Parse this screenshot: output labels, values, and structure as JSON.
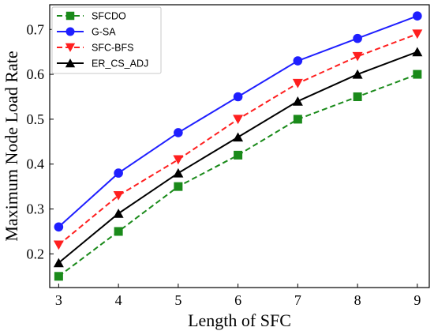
{
  "chart_data": {
    "type": "line",
    "title": "",
    "xlabel": "Length of SFC",
    "ylabel": "Maximum Node Load Rate",
    "x": [
      3,
      4,
      5,
      6,
      7,
      8,
      9
    ],
    "xlim": [
      2.85,
      9.2
    ],
    "ylim": [
      0.125,
      0.755
    ],
    "xticks": [
      3,
      4,
      5,
      6,
      7,
      8,
      9
    ],
    "yticks": [
      0.2,
      0.3,
      0.4,
      0.5,
      0.6,
      0.7
    ],
    "ytick_labels": [
      "0.2",
      "0.3",
      "0.4",
      "0.5",
      "0.6",
      "0.7"
    ],
    "legend_position": "top-left",
    "grid": false,
    "series": [
      {
        "name": "SFCDO",
        "color": "#1a8a1a",
        "marker": "square",
        "dash": true,
        "values": [
          0.15,
          0.25,
          0.35,
          0.42,
          0.5,
          0.55,
          0.6
        ]
      },
      {
        "name": "G-SA",
        "color": "#1f1fff",
        "marker": "circle",
        "dash": false,
        "values": [
          0.26,
          0.38,
          0.47,
          0.55,
          0.63,
          0.68,
          0.73
        ]
      },
      {
        "name": "SFC-BFS",
        "color": "#ff1f1f",
        "marker": "triangle-down",
        "dash": true,
        "values": [
          0.22,
          0.33,
          0.41,
          0.5,
          0.58,
          0.64,
          0.69
        ]
      },
      {
        "name": "ER_CS_ADJ",
        "color": "#000000",
        "marker": "triangle-up",
        "dash": false,
        "values": [
          0.18,
          0.29,
          0.38,
          0.46,
          0.54,
          0.6,
          0.65
        ]
      }
    ]
  }
}
